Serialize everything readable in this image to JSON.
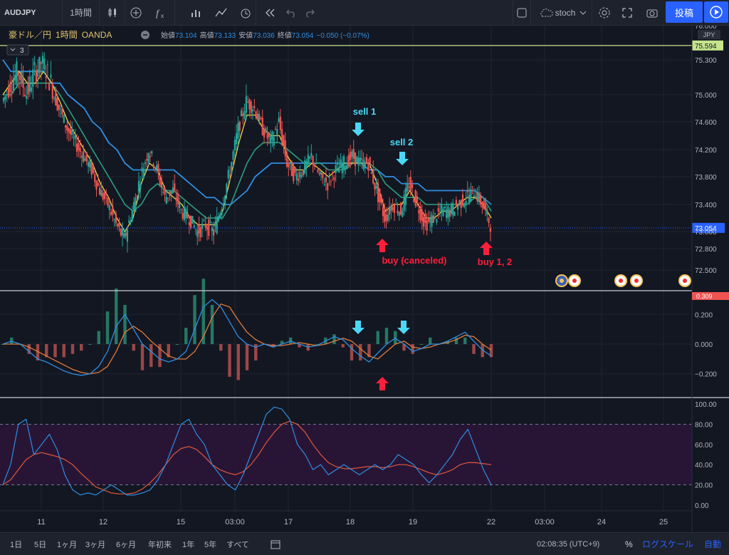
{
  "toolbar": {
    "symbol": "AUDJPY",
    "interval": "1時間",
    "indicator": "stoch",
    "publish": "投稿"
  },
  "legend": {
    "name": "豪ドル／円",
    "interval": "1時間",
    "broker": "OANDA",
    "open_label": "始値",
    "open": "73.104",
    "high_label": "高値",
    "high": "73.133",
    "low_label": "安値",
    "low": "73.036",
    "close_label": "終値",
    "close": "73.054",
    "change": "−0.050 (−0.07%)",
    "collapse_count": "3"
  },
  "bottom": {
    "ranges": [
      "1日",
      "5日",
      "1ヶ月",
      "3ヶ月",
      "6ヶ月",
      "年初来",
      "1年",
      "5年",
      "すべて"
    ],
    "time": "02:08:35 (UTC+9)",
    "percent": "%",
    "log": "ログスケール",
    "auto": "自動"
  },
  "colors": {
    "background": "#131722",
    "up": "#26a69a",
    "down": "#ef5350",
    "ma_fast": "#f7d54a",
    "ma_mid": "#2e9e7e",
    "ma_slow": "#2f8ee0",
    "macd": "#2f8ee0",
    "signal": "#e07a3a",
    "stoch_k": "#2f8ee0",
    "stoch_d": "#e0573a",
    "annotation_sell": "#4ad8f5",
    "annotation_buy": "#ff1f3a",
    "stoch_band": "#2b1538"
  },
  "chart_data": [
    {
      "type": "candlestick",
      "panel": "price",
      "symbol": "AUDJPY",
      "x_ticks": [
        "11",
        "12",
        "15",
        "03:00",
        "17",
        "18",
        "19",
        "22",
        "03:00",
        "24",
        "25"
      ],
      "y_ticks": [
        72.5,
        72.8,
        73.0,
        73.4,
        73.8,
        74.2,
        74.6,
        75.0,
        75.3,
        76.0
      ],
      "y_tick_labels": [
        "72.500",
        "72.800",
        "73.000",
        "73.400",
        "73.800",
        "74.200",
        "74.600",
        "75.000",
        "75.300",
        "76.000"
      ],
      "ylim": [
        72.34,
        76.0
      ],
      "price_line": 75.594,
      "price_line_label": "75.594",
      "last_price": 73.054,
      "last_price_label": "73.054",
      "currency": "JPY",
      "close_series": [
        74.9,
        75.1,
        75.2,
        75.0,
        75.2,
        75.3,
        75.1,
        74.8,
        74.5,
        74.3,
        74.1,
        73.9,
        73.6,
        73.4,
        73.1,
        72.9,
        73.3,
        73.8,
        74.2,
        73.9,
        73.5,
        73.6,
        73.3,
        73.2,
        73.0,
        73.1,
        73.0,
        73.4,
        73.9,
        74.5,
        74.9,
        74.8,
        74.5,
        74.3,
        74.6,
        74.0,
        73.8,
        73.9,
        74.1,
        73.8,
        73.7,
        73.9,
        74.0,
        74.1,
        74.0,
        74.0,
        73.6,
        73.2,
        73.4,
        73.3,
        73.7,
        73.4,
        73.1,
        73.2,
        73.3,
        73.3,
        73.4,
        73.5,
        73.6,
        73.4,
        73.1
      ],
      "ma_fast": [
        75.0,
        75.1,
        75.2,
        75.1,
        75.1,
        75.2,
        75.1,
        74.9,
        74.6,
        74.4,
        74.2,
        74.0,
        73.7,
        73.5,
        73.2,
        73.0,
        73.2,
        73.7,
        74.0,
        73.9,
        73.6,
        73.5,
        73.4,
        73.2,
        73.1,
        73.1,
        73.1,
        73.3,
        73.8,
        74.3,
        74.7,
        74.7,
        74.5,
        74.4,
        74.4,
        74.1,
        73.9,
        73.9,
        74.0,
        73.9,
        73.8,
        73.9,
        74.0,
        74.0,
        74.0,
        74.0,
        73.7,
        73.3,
        73.4,
        73.4,
        73.6,
        73.4,
        73.2,
        73.2,
        73.3,
        73.3,
        73.4,
        73.5,
        73.5,
        73.4,
        73.2
      ],
      "ma_mid": [
        75.0,
        75.0,
        75.1,
        75.1,
        75.1,
        75.1,
        75.1,
        75.0,
        74.8,
        74.6,
        74.4,
        74.2,
        74.0,
        73.8,
        73.6,
        73.4,
        73.3,
        73.4,
        73.6,
        73.7,
        73.6,
        73.6,
        73.5,
        73.4,
        73.3,
        73.2,
        73.2,
        73.2,
        73.4,
        73.7,
        74.0,
        74.2,
        74.3,
        74.3,
        74.3,
        74.2,
        74.1,
        74.0,
        74.0,
        74.0,
        73.9,
        73.9,
        73.9,
        74.0,
        74.0,
        74.0,
        73.9,
        73.7,
        73.6,
        73.5,
        73.5,
        73.5,
        73.4,
        73.4,
        73.4,
        73.4,
        73.4,
        73.4,
        73.5,
        73.5,
        73.3
      ],
      "ma_slow": [
        75.3,
        75.2,
        75.2,
        75.2,
        75.2,
        75.2,
        75.1,
        75.1,
        75.0,
        74.9,
        74.8,
        74.6,
        74.5,
        74.3,
        74.2,
        74.0,
        73.9,
        73.9,
        73.9,
        73.9,
        73.9,
        73.9,
        73.8,
        73.7,
        73.6,
        73.5,
        73.5,
        73.4,
        73.4,
        73.5,
        73.6,
        73.8,
        73.9,
        74.0,
        74.0,
        74.0,
        74.0,
        74.0,
        74.0,
        74.0,
        74.0,
        74.0,
        74.0,
        74.0,
        74.0,
        73.9,
        73.9,
        73.8,
        73.8,
        73.7,
        73.7,
        73.7,
        73.6,
        73.6,
        73.6,
        73.6,
        73.6,
        73.6,
        73.6,
        73.5,
        73.4
      ],
      "annotations": [
        {
          "text": "sell 1",
          "kind": "sell"
        },
        {
          "text": "sell 2",
          "kind": "sell"
        },
        {
          "text": "buy (canceled)",
          "kind": "buy"
        },
        {
          "text": "buy 1, 2",
          "kind": "buy"
        }
      ]
    },
    {
      "type": "line",
      "panel": "macd",
      "y_ticks": [
        -0.2,
        0.0,
        0.2
      ],
      "y_tick_labels": [
        "−0.200",
        "0.000",
        "0.200"
      ],
      "ylim": [
        -0.35,
        0.35
      ],
      "top_scale_label": "0.309",
      "macd": [
        0.0,
        0.02,
        0.0,
        -0.05,
        -0.1,
        -0.12,
        -0.15,
        -0.18,
        -0.2,
        -0.21,
        -0.2,
        -0.15,
        -0.05,
        0.12,
        0.2,
        0.1,
        0.0,
        -0.05,
        -0.1,
        -0.12,
        -0.1,
        -0.05,
        0.1,
        0.25,
        0.3,
        0.25,
        0.15,
        0.05,
        0.0,
        -0.02,
        0.0,
        -0.02,
        0.0,
        0.02,
        0.0,
        -0.02,
        -0.01,
        0.02,
        0.05,
        0.03,
        -0.03,
        -0.08,
        -0.12,
        -0.06,
        0.0,
        0.04,
        0.0,
        -0.05,
        -0.03,
        0.0,
        0.0,
        0.02,
        0.05,
        0.08,
        0.02,
        -0.04,
        -0.08
      ],
      "signal": [
        0.0,
        0.0,
        0.0,
        -0.02,
        -0.05,
        -0.08,
        -0.11,
        -0.14,
        -0.17,
        -0.19,
        -0.2,
        -0.19,
        -0.15,
        -0.05,
        0.08,
        0.12,
        0.08,
        0.02,
        -0.03,
        -0.08,
        -0.1,
        -0.1,
        -0.05,
        0.05,
        0.18,
        0.27,
        0.25,
        0.16,
        0.08,
        0.03,
        0.0,
        -0.01,
        -0.01,
        0.0,
        0.01,
        0.0,
        -0.01,
        0.0,
        0.02,
        0.04,
        0.02,
        -0.03,
        -0.08,
        -0.1,
        -0.05,
        0.0,
        0.02,
        -0.02,
        -0.03,
        -0.02,
        0.0,
        0.01,
        0.03,
        0.06,
        0.05,
        0.0,
        -0.04
      ]
    },
    {
      "type": "line",
      "panel": "stochastic",
      "y_ticks": [
        0,
        20,
        40,
        60,
        80,
        100
      ],
      "y_tick_labels": [
        "0.00",
        "20.00",
        "40.00",
        "60.00",
        "80.00",
        "100.00"
      ],
      "ylim": [
        -5,
        105
      ],
      "band": [
        20,
        80
      ],
      "k": [
        20,
        40,
        80,
        85,
        50,
        60,
        70,
        55,
        30,
        15,
        10,
        12,
        10,
        15,
        20,
        15,
        10,
        10,
        12,
        15,
        25,
        40,
        60,
        80,
        85,
        70,
        60,
        40,
        30,
        20,
        15,
        30,
        50,
        70,
        90,
        97,
        95,
        85,
        60,
        50,
        35,
        40,
        30,
        35,
        40,
        35,
        30,
        35,
        40,
        35,
        40,
        50,
        45,
        40,
        30,
        22,
        30,
        40,
        50,
        65,
        75,
        55,
        35,
        20
      ],
      "d": [
        20,
        25,
        35,
        45,
        50,
        52,
        50,
        48,
        45,
        40,
        32,
        25,
        18,
        15,
        12,
        11,
        11,
        12,
        16,
        22,
        30,
        40,
        50,
        56,
        58,
        55,
        48,
        40,
        35,
        32,
        30,
        33,
        40,
        50,
        62,
        72,
        80,
        83,
        80,
        72,
        60,
        50,
        42,
        38,
        36,
        36,
        37,
        38,
        38,
        37,
        38,
        40,
        40,
        38,
        35,
        32,
        30,
        32,
        35,
        40,
        42,
        42,
        41,
        40
      ]
    }
  ]
}
